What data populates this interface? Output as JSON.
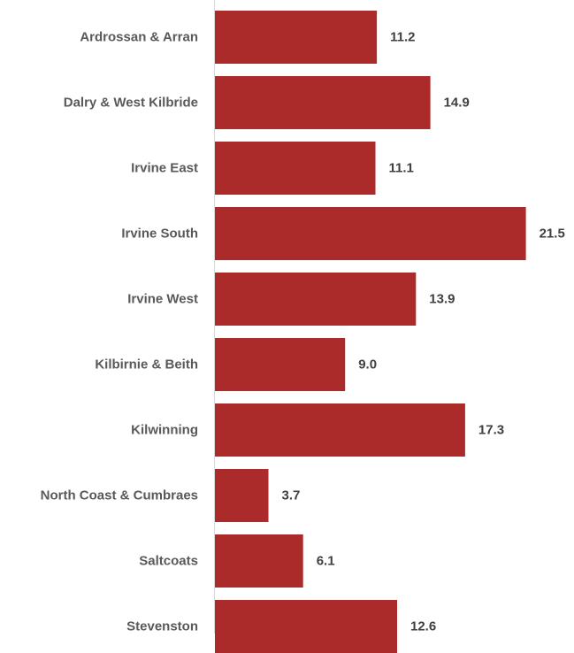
{
  "chart_data": {
    "type": "bar",
    "orientation": "horizontal",
    "categories": [
      "Ardrossan & Arran",
      "Dalry & West Kilbride",
      "Irvine East",
      "Irvine South",
      "Irvine West",
      "Kilbirnie & Beith",
      "Kilwinning",
      "North Coast & Cumbraes",
      "Saltcoats",
      "Stevenston"
    ],
    "values": [
      11.2,
      14.9,
      11.1,
      21.5,
      13.9,
      9.0,
      17.3,
      3.7,
      6.1,
      12.6
    ],
    "value_labels": [
      "11.2",
      "14.9",
      "11.1",
      "21.5",
      "13.9",
      "9.0",
      "17.3",
      "3.7",
      "6.1",
      "12.6"
    ],
    "title": "",
    "xlabel": "",
    "ylabel": "",
    "xlim": [
      0,
      23.3
    ],
    "grid": false,
    "legend": "none",
    "bar_color": "#ab2a2a",
    "axis_color": "#d9d9d9"
  }
}
